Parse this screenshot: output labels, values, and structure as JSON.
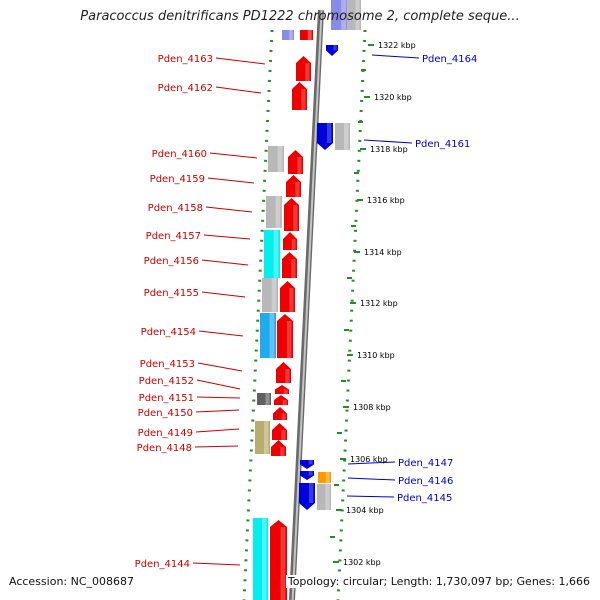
{
  "title": "Paracoccus denitrificans PD1222 chromosome 2, complete seque...",
  "accession": "Accession: NC_008687",
  "topology": "Topology: circular; Length: 1,730,097 bp; Genes: 1,666",
  "colors": {
    "forward": "#ee0000",
    "reverse": "#0000dd",
    "label_left": "#cc0000",
    "label_right": "#0000cc",
    "dots": "#2a8a2a",
    "backbone": "#888888"
  },
  "scale_ticks": [
    "1322 kbp",
    "1320 kbp",
    "1318 kbp",
    "1316 kbp",
    "1314 kbp",
    "1312 kbp",
    "1310 kbp",
    "1308 kbp",
    "1306 kbp",
    "1304 kbp",
    "1302 kbp"
  ],
  "left_genes": [
    "Pden_4163",
    "Pden_4162",
    "Pden_4160",
    "Pden_4159",
    "Pden_4158",
    "Pden_4157",
    "Pden_4156",
    "Pden_4155",
    "Pden_4154",
    "Pden_4153",
    "Pden_4152",
    "Pden_4151",
    "Pden_4150",
    "Pden_4149",
    "Pden_4148",
    "Pden_4144"
  ],
  "right_genes": [
    "Pden_4164",
    "Pden_4161",
    "Pden_4147",
    "Pden_4146",
    "Pden_4145"
  ]
}
